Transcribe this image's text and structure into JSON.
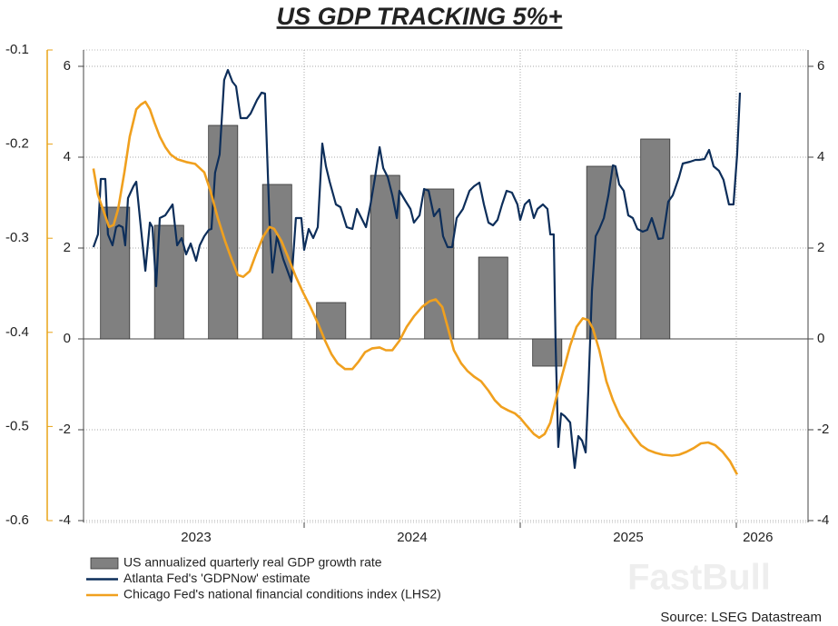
{
  "chart_data": {
    "type": "combo",
    "title": "US GDP TRACKING 5%+",
    "source": "Source: LSEG Datastream",
    "watermark": "FastBull",
    "xlim": [
      2022.979,
      2026.332
    ],
    "xticks": [
      {
        "value": 2023.5,
        "label": "2023"
      },
      {
        "value": 2024.5,
        "label": "2024"
      },
      {
        "value": 2025.5,
        "label": "2025"
      },
      {
        "value": 2026.1,
        "label": "2026"
      }
    ],
    "xgrid": [
      2024,
      2025,
      2026
    ],
    "ylim": [
      -4,
      6.36
    ],
    "yticks": [
      -4,
      -2,
      0,
      2,
      4,
      6
    ],
    "y2lim": [
      -4,
      6.36
    ],
    "y2ticks": [
      -4,
      -2,
      0,
      2,
      4,
      6
    ],
    "y3lim": [
      -0.6,
      -0.1
    ],
    "y3ticks": [
      -0.6,
      -0.5,
      -0.4,
      -0.3,
      -0.2,
      -0.1
    ],
    "y3color": "#e8a317",
    "grid": true,
    "series": [
      {
        "name": "US annualized quarterly real GDP growth rate",
        "type": "bar",
        "color": "#808080",
        "x": [
          2023.125,
          2023.375,
          2023.625,
          2023.875,
          2024.125,
          2024.375,
          2024.625,
          2024.875,
          2025.125,
          2025.375,
          2025.625
        ],
        "values": [
          2.9,
          2.5,
          4.7,
          3.4,
          0.8,
          3.6,
          3.3,
          1.8,
          -0.6,
          3.8,
          4.4
        ]
      },
      {
        "name": "Atlanta Fed's 'GDPNow' estimate",
        "type": "line",
        "color": "#0d2e5a",
        "x": [
          2023.025,
          2023.046,
          2023.059,
          2023.08,
          2023.092,
          2023.113,
          2023.13,
          2023.143,
          2023.16,
          2023.172,
          2023.185,
          2023.21,
          2023.223,
          2023.244,
          2023.265,
          2023.286,
          2023.298,
          2023.315,
          2023.332,
          2023.357,
          2023.391,
          2023.412,
          2023.433,
          2023.454,
          2023.475,
          2023.5,
          2023.517,
          2023.538,
          2023.559,
          2023.571,
          2023.588,
          2023.609,
          2023.63,
          2023.647,
          2023.668,
          2023.685,
          2023.706,
          2023.735,
          2023.752,
          2023.782,
          2023.803,
          2023.819,
          2023.84,
          2023.853,
          2023.874,
          2023.903,
          2023.941,
          2023.962,
          2023.987,
          2024.0,
          2024.021,
          2024.042,
          2024.063,
          2024.084,
          2024.101,
          2024.118,
          2024.147,
          2024.168,
          2024.197,
          2024.223,
          2024.244,
          2024.265,
          2024.286,
          2024.307,
          2024.328,
          2024.349,
          2024.366,
          2024.387,
          2024.408,
          2024.429,
          2024.441,
          2024.471,
          2024.492,
          2024.508,
          2024.534,
          2024.555,
          2024.576,
          2024.601,
          2024.626,
          2024.643,
          2024.664,
          2024.685,
          2024.706,
          2024.735,
          2024.765,
          2024.786,
          2024.811,
          2024.832,
          2024.853,
          2024.874,
          2024.895,
          2024.916,
          2024.937,
          2024.962,
          2024.987,
          2025.0,
          2025.021,
          2025.042,
          2025.063,
          2025.08,
          2025.105,
          2025.126,
          2025.139,
          2025.155,
          2025.164,
          2025.176,
          2025.189,
          2025.206,
          2025.231,
          2025.252,
          2025.269,
          2025.286,
          2025.303,
          2025.315,
          2025.332,
          2025.349,
          2025.366,
          2025.387,
          2025.408,
          2025.429,
          2025.441,
          2025.458,
          2025.479,
          2025.5,
          2025.521,
          2025.542,
          2025.567,
          2025.588,
          2025.609,
          2025.639,
          2025.66,
          2025.685,
          2025.706,
          2025.735,
          2025.752,
          2025.786,
          2025.811,
          2025.828,
          2025.853,
          2025.874,
          2025.895,
          2025.92,
          2025.941,
          2025.966,
          2025.987,
          2026.004,
          2026.017
        ],
        "values": [
          2.02,
          2.3,
          3.52,
          3.52,
          2.3,
          2.06,
          2.46,
          2.5,
          2.46,
          2.06,
          3.1,
          3.36,
          3.46,
          2.46,
          1.5,
          2.56,
          2.46,
          1.16,
          2.66,
          2.72,
          2.96,
          2.06,
          2.22,
          1.86,
          2.1,
          1.72,
          2.06,
          2.26,
          2.4,
          2.42,
          3.66,
          4.06,
          5.7,
          5.92,
          5.66,
          5.56,
          4.86,
          4.86,
          4.96,
          5.26,
          5.42,
          5.4,
          2.56,
          1.46,
          2.26,
          1.76,
          1.26,
          2.66,
          2.66,
          1.96,
          2.42,
          2.22,
          2.46,
          4.3,
          3.8,
          3.46,
          2.96,
          2.9,
          2.46,
          2.42,
          2.86,
          2.66,
          2.46,
          2.96,
          3.56,
          4.22,
          3.76,
          3.56,
          3.16,
          2.66,
          3.26,
          3.02,
          2.86,
          2.56,
          2.72,
          3.3,
          3.26,
          2.7,
          2.86,
          2.26,
          2.02,
          2.02,
          2.66,
          2.86,
          3.26,
          3.36,
          3.44,
          2.96,
          2.56,
          2.5,
          2.62,
          2.96,
          3.26,
          3.22,
          2.96,
          2.62,
          2.96,
          3.06,
          2.66,
          2.86,
          2.96,
          2.86,
          2.3,
          2.3,
          -0.14,
          -2.38,
          -1.64,
          -1.7,
          -1.84,
          -2.84,
          -2.14,
          -2.24,
          -2.5,
          -1.14,
          1.06,
          2.26,
          2.42,
          2.66,
          3.16,
          3.82,
          3.8,
          3.4,
          3.26,
          2.72,
          2.66,
          2.42,
          2.36,
          2.4,
          2.66,
          2.2,
          2.22,
          3.02,
          3.16,
          3.56,
          3.86,
          3.9,
          3.94,
          3.94,
          3.96,
          4.16,
          3.8,
          3.7,
          3.5,
          2.96,
          2.96,
          4.06,
          5.42
        ]
      },
      {
        "name": "Chicago Fed's national financial conditions index (LHS2)",
        "type": "line",
        "axis": "y3",
        "color": "#f0a01e",
        "x": [
          2023.025,
          2023.046,
          2023.076,
          2023.097,
          2023.118,
          2023.139,
          2023.168,
          2023.193,
          2023.223,
          2023.244,
          2023.265,
          2023.286,
          2023.307,
          2023.332,
          2023.357,
          2023.382,
          2023.412,
          2023.454,
          2023.496,
          2023.538,
          2023.567,
          2023.601,
          2023.634,
          2023.664,
          2023.693,
          2023.718,
          2023.748,
          2023.777,
          2023.811,
          2023.84,
          2023.861,
          2023.895,
          2023.929,
          2023.962,
          2023.996,
          2024.029,
          2024.063,
          2024.097,
          2024.126,
          2024.155,
          2024.189,
          2024.223,
          2024.252,
          2024.282,
          2024.315,
          2024.349,
          2024.378,
          2024.408,
          2024.441,
          2024.475,
          2024.508,
          2024.546,
          2024.58,
          2024.609,
          2024.639,
          2024.664,
          2024.693,
          2024.727,
          2024.756,
          2024.786,
          2024.819,
          2024.853,
          2024.882,
          2024.912,
          2024.945,
          2024.975,
          2025.0,
          2025.029,
          2025.063,
          2025.088,
          2025.113,
          2025.139,
          2025.164,
          2025.197,
          2025.231,
          2025.261,
          2025.29,
          2025.315,
          2025.336,
          2025.366,
          2025.399,
          2025.429,
          2025.462,
          2025.492,
          2025.525,
          2025.559,
          2025.592,
          2025.626,
          2025.66,
          2025.702,
          2025.735,
          2025.769,
          2025.803,
          2025.836,
          2025.87,
          2025.903,
          2025.937,
          2025.971,
          2026.004
        ],
        "values": [
          -0.226,
          -0.254,
          -0.274,
          -0.288,
          -0.286,
          -0.269,
          -0.23,
          -0.192,
          -0.163,
          -0.158,
          -0.155,
          -0.163,
          -0.177,
          -0.192,
          -0.203,
          -0.211,
          -0.216,
          -0.219,
          -0.221,
          -0.23,
          -0.25,
          -0.279,
          -0.303,
          -0.322,
          -0.339,
          -0.341,
          -0.335,
          -0.317,
          -0.298,
          -0.288,
          -0.29,
          -0.303,
          -0.322,
          -0.341,
          -0.358,
          -0.373,
          -0.39,
          -0.409,
          -0.423,
          -0.433,
          -0.439,
          -0.439,
          -0.431,
          -0.421,
          -0.417,
          -0.416,
          -0.419,
          -0.419,
          -0.409,
          -0.394,
          -0.383,
          -0.373,
          -0.367,
          -0.365,
          -0.373,
          -0.394,
          -0.419,
          -0.433,
          -0.441,
          -0.447,
          -0.452,
          -0.462,
          -0.472,
          -0.479,
          -0.483,
          -0.486,
          -0.491,
          -0.499,
          -0.508,
          -0.512,
          -0.508,
          -0.496,
          -0.472,
          -0.443,
          -0.414,
          -0.394,
          -0.385,
          -0.387,
          -0.396,
          -0.419,
          -0.452,
          -0.472,
          -0.489,
          -0.499,
          -0.51,
          -0.52,
          -0.525,
          -0.528,
          -0.53,
          -0.531,
          -0.53,
          -0.527,
          -0.523,
          -0.518,
          -0.517,
          -0.52,
          -0.527,
          -0.537,
          -0.551
        ]
      }
    ]
  }
}
